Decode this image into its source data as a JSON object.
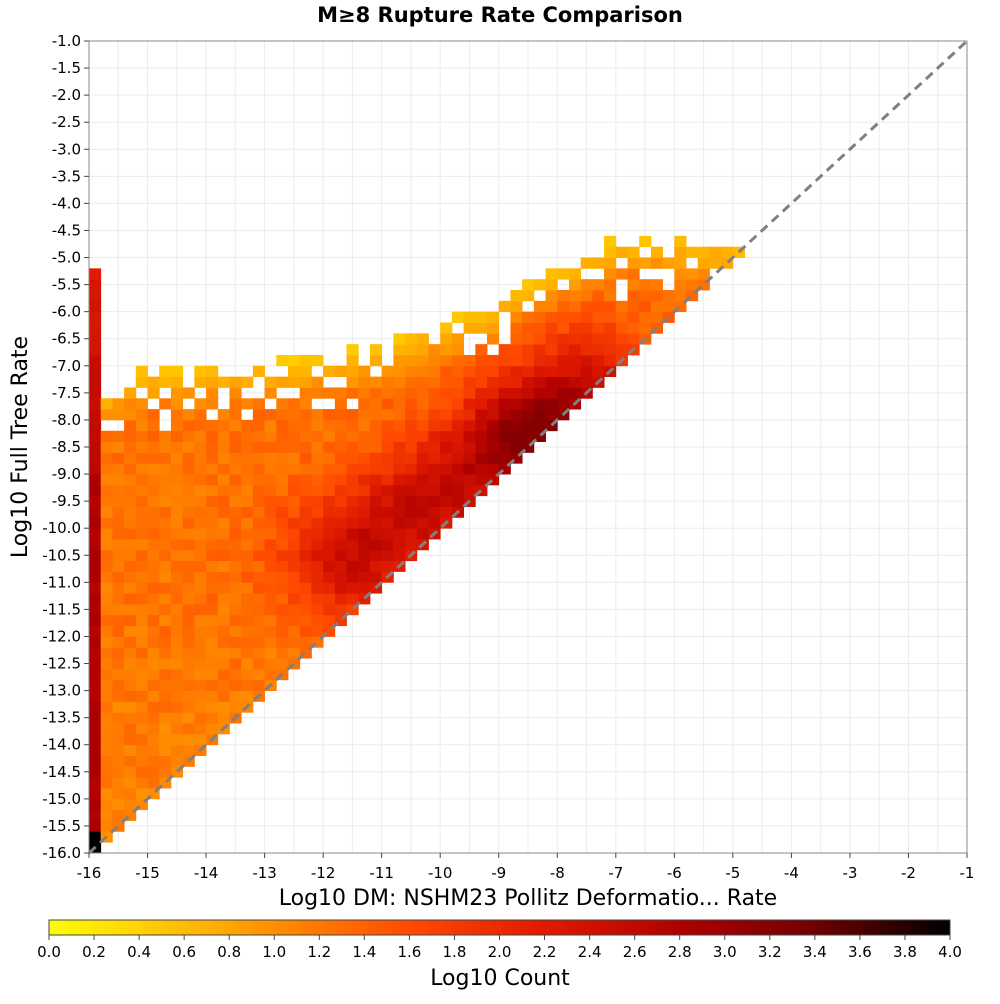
{
  "chart_data": {
    "type": "heatmap",
    "title": "M≥8 Rupture Rate Comparison",
    "xlabel": "Log10 DM: NSHM23 Pollitz Deformatio... Rate",
    "ylabel": "Log10 Full Tree Rate",
    "xlim": [
      -16,
      -1
    ],
    "ylim": [
      -16,
      -1
    ],
    "bin_size": 0.2,
    "x_ticks": [
      "-16",
      "-15",
      "-14",
      "-13",
      "-12",
      "-11",
      "-10",
      "-9",
      "-8",
      "-7",
      "-6",
      "-5",
      "-4",
      "-3",
      "-2",
      "-1"
    ],
    "y_ticks": [
      "-16.0",
      "-15.5",
      "-15.0",
      "-14.5",
      "-14.0",
      "-13.5",
      "-13.0",
      "-12.5",
      "-12.0",
      "-11.5",
      "-11.0",
      "-10.5",
      "-10.0",
      "-9.5",
      "-9.0",
      "-8.5",
      "-8.0",
      "-7.5",
      "-7.0",
      "-6.5",
      "-6.0",
      "-5.5",
      "-5.0",
      "-4.5",
      "-4.0",
      "-3.5",
      "-3.0",
      "-2.5",
      "-2.0",
      "-1.5",
      "-1.0"
    ],
    "reference_line": "y = x (dashed)",
    "grid": true,
    "colorbar": {
      "label": "Log10 Count",
      "range": [
        0.0,
        4.0
      ],
      "ticks": [
        "0.0",
        "0.2",
        "0.4",
        "0.6",
        "0.8",
        "1.0",
        "1.2",
        "1.4",
        "1.6",
        "1.8",
        "2.0",
        "2.2",
        "2.4",
        "2.6",
        "2.8",
        "3.0",
        "3.2",
        "3.4",
        "3.6",
        "3.8",
        "4.0"
      ],
      "colors": [
        "#ffff00",
        "#ffa500",
        "#ff4a00",
        "#e01a00",
        "#b00000",
        "#700000",
        "#000000"
      ],
      "placement": "bottom"
    },
    "density_features": {
      "x_floor_column": {
        "x": -15.9,
        "y_range": [
          -16.0,
          -5.2
        ],
        "peak_log10_count": 2.9
      },
      "main_ridge": {
        "from": [
          -11.5,
          -10.5
        ],
        "to": [
          -7.5,
          -7.5
        ],
        "peak_at": [
          -8.4,
          -8.3
        ],
        "peak_log10_count": 3.0
      },
      "lower_bound": "y ≈ x",
      "upper_envelope": [
        [
          -16,
          -7.5
        ],
        [
          -15,
          -7.0
        ],
        [
          -14,
          -7.0
        ],
        [
          -13,
          -6.9
        ],
        [
          -12,
          -6.8
        ],
        [
          -11,
          -6.6
        ],
        [
          -10,
          -6.2
        ],
        [
          -9,
          -5.8
        ],
        [
          -8,
          -5.2
        ],
        [
          -7,
          -4.6
        ],
        [
          -6,
          -4.6
        ],
        [
          -5,
          -4.7
        ],
        [
          -4.4,
          -5.3
        ]
      ],
      "corner_bin": {
        "x": -15.9,
        "y": -15.9,
        "log10_count": 4.0
      }
    }
  }
}
